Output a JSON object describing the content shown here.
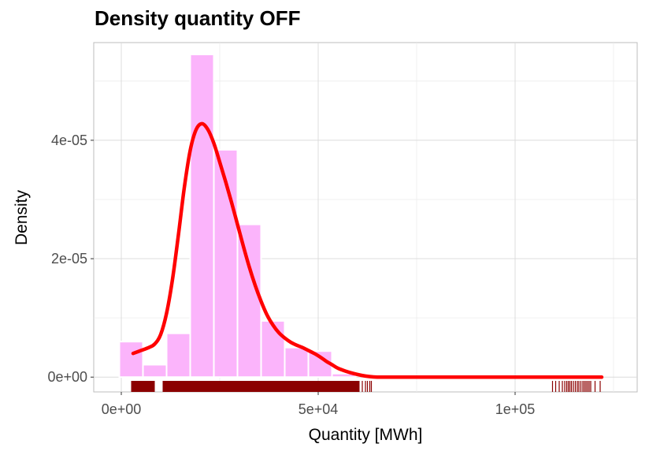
{
  "chart_data": {
    "type": "histogram",
    "title": "Density quantity OFF",
    "xlabel": "Quantity [MWh]",
    "ylabel": "Density",
    "xlim": [
      -7000,
      131000
    ],
    "ylim": [
      -2.5e-06,
      5.65e-05
    ],
    "x_ticks": [
      {
        "value": 0,
        "label": "0e+00"
      },
      {
        "value": 50000,
        "label": "5e+04"
      },
      {
        "value": 100000,
        "label": "1e+05"
      }
    ],
    "y_ticks": [
      {
        "value": 0,
        "label": "0e+00"
      },
      {
        "value": 2e-05,
        "label": "2e-05"
      },
      {
        "value": 4e-05,
        "label": "4e-05"
      }
    ],
    "grid": true,
    "histogram": {
      "bins": [
        {
          "x0": -500,
          "x1": 5500,
          "density": 6e-06
        },
        {
          "x0": 5500,
          "x1": 11500,
          "density": 2.1e-06
        },
        {
          "x0": 11500,
          "x1": 17500,
          "density": 7.4e-06
        },
        {
          "x0": 17500,
          "x1": 23500,
          "density": 5.45e-05
        },
        {
          "x0": 23500,
          "x1": 29500,
          "density": 3.84e-05
        },
        {
          "x0": 29500,
          "x1": 35500,
          "density": 2.58e-05
        },
        {
          "x0": 35500,
          "x1": 41500,
          "density": 9.5e-06
        },
        {
          "x0": 41500,
          "x1": 47500,
          "density": 5e-06
        },
        {
          "x0": 47500,
          "x1": 53500,
          "density": 4.4e-06
        },
        {
          "x0": 53500,
          "x1": 59500,
          "density": 6e-07
        }
      ],
      "color": "#fbb4fb"
    },
    "density_curve": {
      "color": "#ff0000",
      "x": [
        3000,
        5000,
        7000,
        8500,
        10000,
        11500,
        13000,
        14500,
        16000,
        17500,
        19000,
        20500,
        22000,
        23500,
        25000,
        26500,
        28000,
        29500,
        31000,
        32500,
        34000,
        35500,
        37000,
        38500,
        40000,
        41500,
        43000,
        44500,
        46000,
        47500,
        49000,
        50500,
        52000,
        53500,
        55000,
        57000,
        59000,
        61000,
        63000,
        65000,
        68000,
        72000,
        80000,
        100000,
        122000
      ],
      "y": [
        4e-06,
        4.5e-06,
        5e-06,
        5.6e-06,
        7.2e-06,
        1.08e-05,
        1.65e-05,
        2.4e-05,
        3.2e-05,
        3.83e-05,
        4.18e-05,
        4.28e-05,
        4.18e-05,
        3.95e-05,
        3.63e-05,
        3.3e-05,
        2.95e-05,
        2.58e-05,
        2.21e-05,
        1.86e-05,
        1.55e-05,
        1.28e-05,
        1.05e-05,
        8.8e-06,
        7.5e-06,
        6.6e-06,
        5.9e-06,
        5.4e-06,
        5e-06,
        4.5e-06,
        4e-06,
        3.4e-06,
        2.7e-06,
        2.1e-06,
        1.5e-06,
        1e-06,
        6e-07,
        3e-07,
        1e-07,
        0.0,
        0.0,
        0.0,
        0.0,
        0.0,
        0.0
      ]
    },
    "rug": {
      "color": "#8b0000",
      "segments": [
        [
          2500,
          8500
        ],
        [
          10500,
          60500
        ]
      ],
      "ticks": [
        61200,
        62000,
        62500,
        63100,
        63500,
        109500,
        110300,
        111200,
        112000,
        112600,
        113100,
        113500,
        113900,
        114300,
        114800,
        115300,
        115800,
        116200,
        116700,
        117200,
        117600,
        118000,
        118400,
        118800,
        119200,
        120300,
        121600
      ]
    }
  }
}
